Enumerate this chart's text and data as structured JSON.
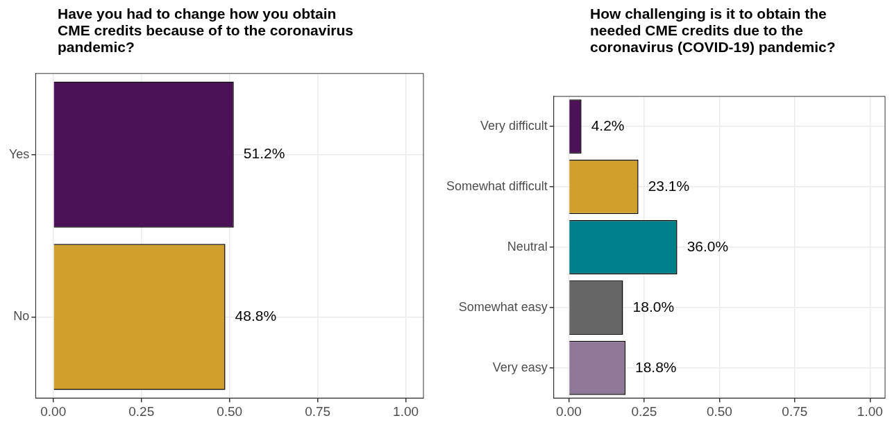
{
  "chart_data": [
    {
      "type": "bar",
      "orientation": "horizontal",
      "title": "Have you had to change how you obtain CME credits because of to the coronavirus pandemic?",
      "categories": [
        "Yes",
        "No"
      ],
      "values": [
        0.512,
        0.488
      ],
      "colors": [
        "#4b1257",
        "#d1a02c"
      ],
      "value_labels": [
        "51.2%",
        "48.8%"
      ],
      "xlim": [
        -0.05,
        1.05
      ],
      "xticks": [
        {
          "value": 0,
          "label": "0.00"
        },
        {
          "value": 0.25,
          "label": "0.25"
        },
        {
          "value": 0.5,
          "label": "0.50"
        },
        {
          "value": 0.75,
          "label": "0.75"
        },
        {
          "value": 1,
          "label": "1.00"
        }
      ],
      "grid": true,
      "legend": false
    },
    {
      "type": "bar",
      "orientation": "horizontal",
      "title": "How challenging is it to obtain the needed CME credits due to the coronavirus (COVID-19) pandemic?",
      "categories": [
        "Very difficult",
        "Somewhat difficult",
        "Neutral",
        "Somewhat easy",
        "Very easy"
      ],
      "values": [
        0.042,
        0.231,
        0.36,
        0.18,
        0.188
      ],
      "colors": [
        "#4b1257",
        "#d1a02c",
        "#00808a",
        "#666666",
        "#8f7797"
      ],
      "value_labels": [
        "4.2%",
        "23.1%",
        "36.0%",
        "18.0%",
        "18.8%"
      ],
      "xlim": [
        -0.05,
        1.05
      ],
      "xticks": [
        {
          "value": 0,
          "label": "0.00"
        },
        {
          "value": 0.25,
          "label": "0.25"
        },
        {
          "value": 0.5,
          "label": "0.50"
        },
        {
          "value": 0.75,
          "label": "0.75"
        },
        {
          "value": 1,
          "label": "1.00"
        }
      ],
      "grid": true,
      "legend": false
    }
  ]
}
